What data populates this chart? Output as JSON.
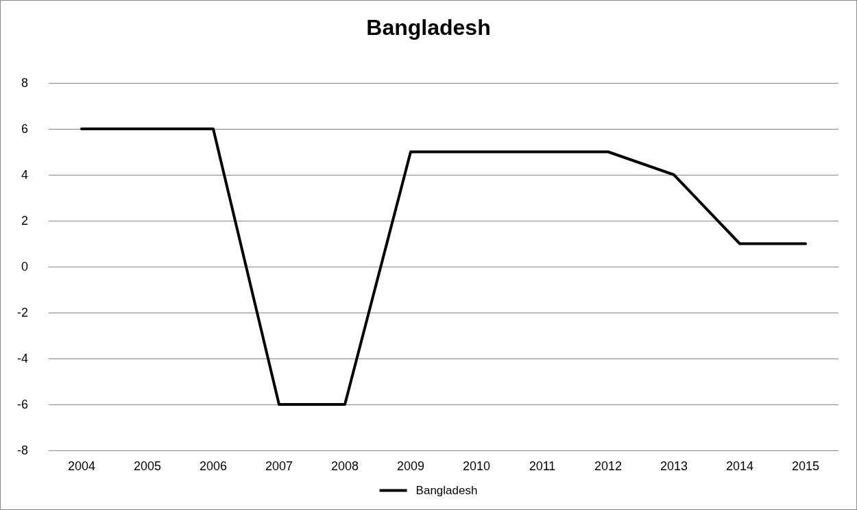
{
  "chart_data": {
    "type": "line",
    "title": "Bangladesh",
    "categories": [
      "2004",
      "2005",
      "2006",
      "2007",
      "2008",
      "2009",
      "2010",
      "2011",
      "2012",
      "2013",
      "2014",
      "2015"
    ],
    "series": [
      {
        "name": "Bangladesh",
        "color": "#000000",
        "values": [
          6,
          6,
          6,
          -6,
          -6,
          5,
          5,
          5,
          5,
          4,
          1,
          1
        ]
      }
    ],
    "ylim": [
      -8,
      8
    ],
    "yticks": [
      -8,
      -6,
      -4,
      -2,
      0,
      2,
      4,
      6,
      8
    ],
    "grid": "y",
    "legend": "bottom",
    "marker": "none",
    "line_style": "solid"
  }
}
